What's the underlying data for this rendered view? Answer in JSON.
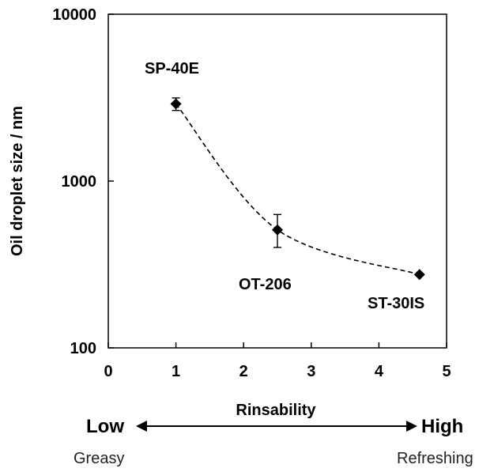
{
  "chart_data": {
    "type": "scatter",
    "title": "",
    "xlabel": "Rinsability",
    "ylabel": "Oil droplet size / nm",
    "xlim": [
      0,
      5
    ],
    "ylim": [
      100,
      10000
    ],
    "y_scale": "log",
    "x_ticks": [
      "0",
      "1",
      "2",
      "3",
      "4",
      "5"
    ],
    "y_ticks": [
      "100",
      "1000",
      "10000"
    ],
    "grid": false,
    "marker": "diamond",
    "trend_line": "dashed",
    "points": [
      {
        "label": "SP-40E",
        "x": 1.0,
        "y": 2900,
        "err_low": 2650,
        "err_high": 3150
      },
      {
        "label": "OT-206",
        "x": 2.5,
        "y": 510,
        "err_low": 400,
        "err_high": 630
      },
      {
        "label": "ST-30IS",
        "x": 4.6,
        "y": 275,
        "err_low": 275,
        "err_high": 275
      }
    ]
  },
  "scale": {
    "low": "Low",
    "high": "High",
    "low_desc": "Greasy",
    "high_desc": "Refreshing"
  }
}
